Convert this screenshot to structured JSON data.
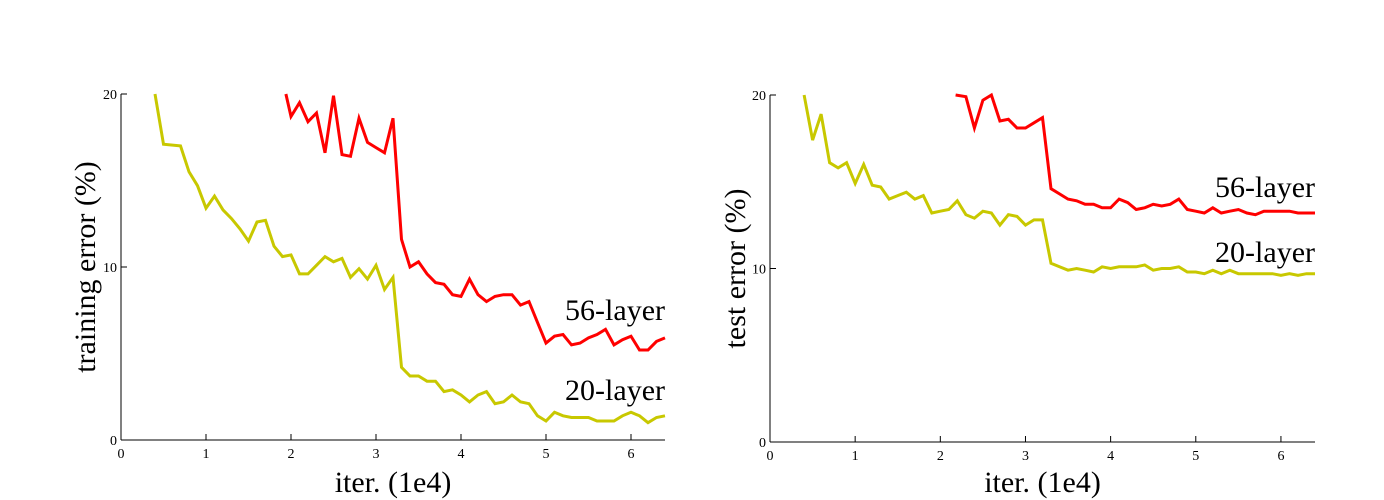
{
  "chart_data": [
    {
      "type": "line",
      "title": "",
      "xlabel": "iter. (1e4)",
      "ylabel": "training error (%)",
      "xlim": [
        0,
        6.4
      ],
      "ylim": [
        0,
        20
      ],
      "xticks": [
        "0",
        "1",
        "2",
        "3",
        "4",
        "5",
        "6"
      ],
      "yticks": [
        "0",
        "10",
        "20"
      ],
      "grid": false,
      "series": [
        {
          "name": "56-layer",
          "color": "#ff0000",
          "x": [
            1.94,
            2.0,
            2.1,
            2.2,
            2.3,
            2.4,
            2.5,
            2.6,
            2.7,
            2.8,
            2.9,
            3.0,
            3.1,
            3.2,
            3.3,
            3.4,
            3.5,
            3.6,
            3.7,
            3.8,
            3.9,
            4.0,
            4.1,
            4.2,
            4.3,
            4.4,
            4.5,
            4.6,
            4.7,
            4.8,
            4.9,
            5.0,
            5.1,
            5.2,
            5.3,
            5.4,
            5.5,
            5.6,
            5.7,
            5.8,
            5.9,
            6.0,
            6.1,
            6.2,
            6.3,
            6.4
          ],
          "y": [
            20,
            18.7,
            19.5,
            18.4,
            18.9,
            16.6,
            19.9,
            16.5,
            16.4,
            18.6,
            17.2,
            16.9,
            16.6,
            18.6,
            11.6,
            10.0,
            10.3,
            9.6,
            9.1,
            9.0,
            8.4,
            8.3,
            9.3,
            8.4,
            8.0,
            8.3,
            8.4,
            8.4,
            7.8,
            8.0,
            6.8,
            5.6,
            6.0,
            6.1,
            5.5,
            5.6,
            5.9,
            6.1,
            6.4,
            5.5,
            5.8,
            6.0,
            5.2,
            5.2,
            5.7,
            5.9
          ]
        },
        {
          "name": "20-layer",
          "color": "#c8c800",
          "x": [
            0.4,
            0.5,
            0.7,
            0.8,
            0.9,
            1.0,
            1.1,
            1.2,
            1.3,
            1.4,
            1.5,
            1.6,
            1.7,
            1.8,
            1.9,
            2.0,
            2.1,
            2.2,
            2.3,
            2.4,
            2.5,
            2.6,
            2.7,
            2.8,
            2.9,
            3.0,
            3.1,
            3.2,
            3.3,
            3.4,
            3.5,
            3.6,
            3.7,
            3.8,
            3.9,
            4.0,
            4.1,
            4.2,
            4.3,
            4.4,
            4.5,
            4.6,
            4.7,
            4.8,
            4.9,
            5.0,
            5.1,
            5.2,
            5.3,
            5.4,
            5.5,
            5.6,
            5.7,
            5.8,
            5.9,
            6.0,
            6.1,
            6.2,
            6.3,
            6.4
          ],
          "y": [
            20,
            17.1,
            17.0,
            15.5,
            14.7,
            13.4,
            14.1,
            13.3,
            12.8,
            12.2,
            11.5,
            12.6,
            12.7,
            11.2,
            10.6,
            10.7,
            9.6,
            9.6,
            10.1,
            10.6,
            10.3,
            10.5,
            9.4,
            9.9,
            9.3,
            10.1,
            8.7,
            9.4,
            4.2,
            3.7,
            3.7,
            3.4,
            3.4,
            2.8,
            2.9,
            2.6,
            2.2,
            2.6,
            2.8,
            2.1,
            2.2,
            2.6,
            2.2,
            2.1,
            1.4,
            1.1,
            1.6,
            1.4,
            1.3,
            1.3,
            1.3,
            1.1,
            1.1,
            1.1,
            1.4,
            1.6,
            1.4,
            1.0,
            1.3,
            1.4
          ]
        }
      ]
    },
    {
      "type": "line",
      "title": "",
      "xlabel": "iter. (1e4)",
      "ylabel": "test error (%)",
      "xlim": [
        0,
        6.4
      ],
      "ylim": [
        0,
        20
      ],
      "xticks": [
        "0",
        "1",
        "2",
        "3",
        "4",
        "5",
        "6"
      ],
      "yticks": [
        "0",
        "10",
        "20"
      ],
      "grid": false,
      "series": [
        {
          "name": "56-layer",
          "color": "#ff0000",
          "x": [
            2.18,
            2.3,
            2.4,
            2.5,
            2.6,
            2.7,
            2.8,
            2.9,
            3.0,
            3.1,
            3.2,
            3.3,
            3.4,
            3.5,
            3.6,
            3.7,
            3.8,
            3.9,
            4.0,
            4.1,
            4.2,
            4.3,
            4.4,
            4.5,
            4.6,
            4.7,
            4.8,
            4.9,
            5.0,
            5.1,
            5.2,
            5.3,
            5.4,
            5.5,
            5.6,
            5.7,
            5.8,
            5.9,
            6.0,
            6.1,
            6.2,
            6.3,
            6.4
          ],
          "y": [
            20,
            19.9,
            18.1,
            19.7,
            20,
            18.5,
            18.6,
            18.1,
            18.1,
            18.4,
            18.7,
            14.6,
            14.3,
            14.0,
            13.9,
            13.7,
            13.7,
            13.5,
            13.5,
            14.0,
            13.8,
            13.4,
            13.5,
            13.7,
            13.6,
            13.7,
            14.0,
            13.4,
            13.3,
            13.2,
            13.5,
            13.2,
            13.3,
            13.4,
            13.2,
            13.1,
            13.3,
            13.3,
            13.3,
            13.3,
            13.2,
            13.2,
            13.2
          ]
        },
        {
          "name": "20-layer",
          "color": "#c8c800",
          "x": [
            0.4,
            0.5,
            0.6,
            0.7,
            0.8,
            0.9,
            1.0,
            1.1,
            1.2,
            1.3,
            1.4,
            1.5,
            1.6,
            1.7,
            1.8,
            1.9,
            2.0,
            2.1,
            2.2,
            2.3,
            2.4,
            2.5,
            2.6,
            2.7,
            2.8,
            2.9,
            3.0,
            3.1,
            3.2,
            3.3,
            3.4,
            3.5,
            3.6,
            3.7,
            3.8,
            3.9,
            4.0,
            4.1,
            4.2,
            4.3,
            4.4,
            4.5,
            4.6,
            4.7,
            4.8,
            4.9,
            5.0,
            5.1,
            5.2,
            5.3,
            5.4,
            5.5,
            5.6,
            5.7,
            5.8,
            5.9,
            6.0,
            6.1,
            6.2,
            6.3,
            6.4
          ],
          "y": [
            20,
            17.4,
            18.9,
            16.1,
            15.8,
            16.1,
            14.9,
            16.0,
            14.8,
            14.7,
            14.0,
            14.2,
            14.4,
            14.0,
            14.2,
            13.2,
            13.3,
            13.4,
            13.9,
            13.1,
            12.9,
            13.3,
            13.2,
            12.5,
            13.1,
            13.0,
            12.5,
            12.8,
            12.8,
            10.3,
            10.1,
            9.9,
            10.0,
            9.9,
            9.8,
            10.1,
            10.0,
            10.1,
            10.1,
            10.1,
            10.2,
            9.9,
            10.0,
            10.0,
            10.1,
            9.8,
            9.8,
            9.7,
            9.9,
            9.7,
            9.9,
            9.7,
            9.7,
            9.7,
            9.7,
            9.7,
            9.6,
            9.7,
            9.6,
            9.7,
            9.7
          ]
        }
      ]
    }
  ]
}
